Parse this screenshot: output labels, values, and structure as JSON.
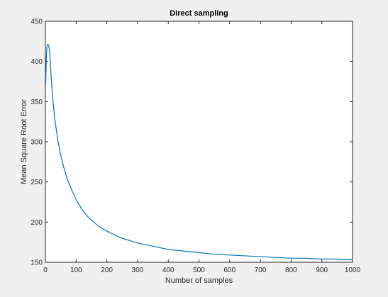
{
  "chart_data": {
    "type": "line",
    "title": "Direct sampling",
    "xlabel": "Number of samples",
    "ylabel": "Mean Square Root Error",
    "xlim": [
      0,
      1000
    ],
    "ylim": [
      150,
      450
    ],
    "xticks": [
      0,
      100,
      200,
      300,
      400,
      500,
      600,
      700,
      800,
      900,
      1000
    ],
    "yticks": [
      150,
      200,
      250,
      300,
      350,
      400,
      450
    ],
    "grid": false,
    "line_color": "#0072bd",
    "series": [
      {
        "x": [
          1,
          3,
          5,
          7,
          9,
          11,
          13,
          15,
          20,
          25,
          30,
          40,
          50,
          60,
          70,
          80,
          100,
          120,
          140,
          160,
          180,
          200,
          225,
          250,
          275,
          300,
          350,
          400,
          450,
          500,
          550,
          600,
          650,
          700,
          750,
          800,
          850,
          900,
          950,
          1000
        ],
        "y": [
          370,
          405,
          419,
          421,
          421,
          419,
          414,
          405,
          373,
          350,
          330,
          303,
          283,
          268,
          255,
          245,
          228,
          215,
          206,
          199,
          193,
          189,
          184,
          180,
          177,
          174,
          170,
          166,
          164,
          162,
          160,
          159,
          158,
          157,
          156,
          155,
          155,
          154,
          154,
          153
        ]
      }
    ]
  }
}
